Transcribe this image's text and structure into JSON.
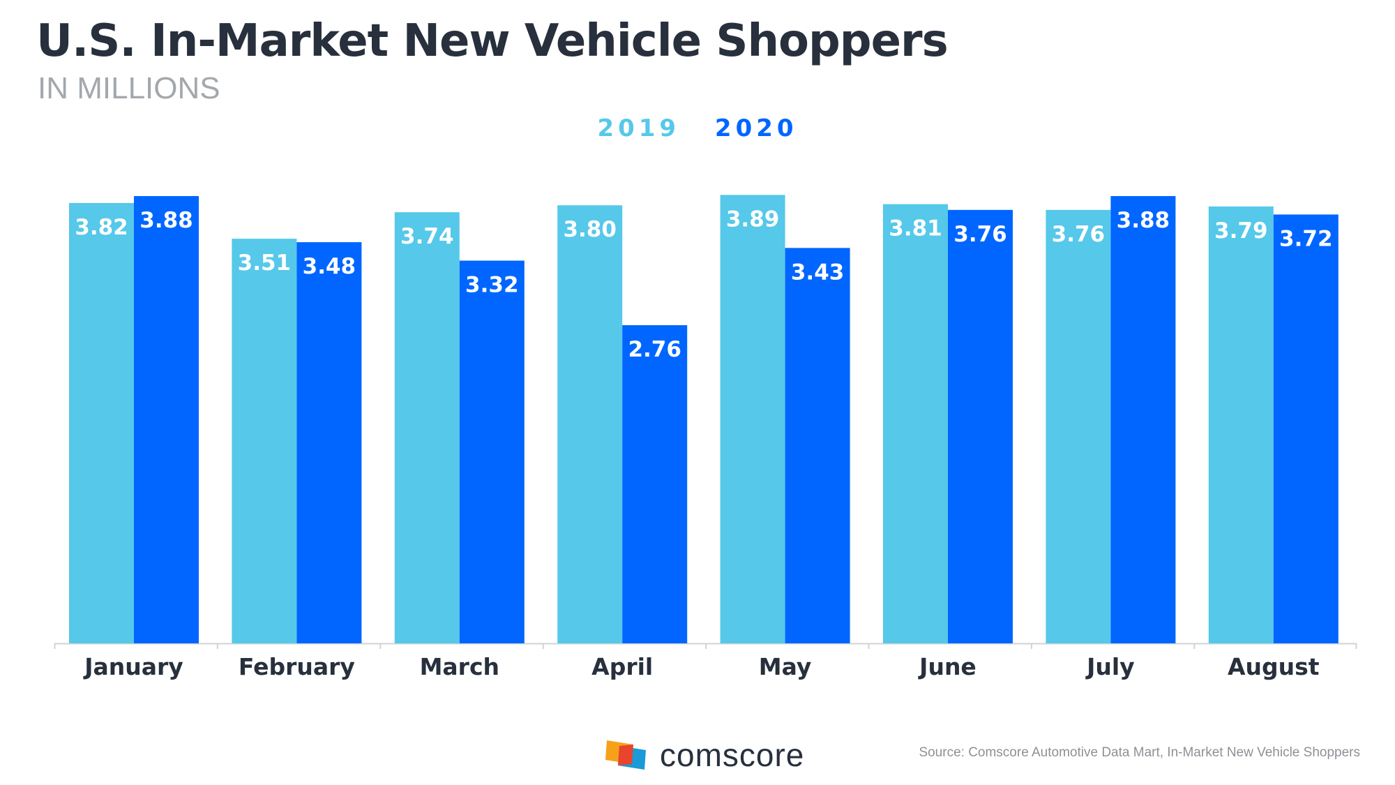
{
  "header": {
    "title": "U.S. In-Market New Vehicle Shoppers",
    "subtitle": "IN MILLIONS"
  },
  "legend": {
    "series_2019": "2019",
    "series_2020": "2020"
  },
  "colors": {
    "series_2019": "#56c8e9",
    "series_2020": "#0066ff",
    "axis": "#cfd3d6",
    "label_text": "#ffffff",
    "category_text": "#27303c"
  },
  "chart_data": {
    "type": "bar",
    "title": "U.S. In-Market New Vehicle Shoppers",
    "subtitle": "IN MILLIONS",
    "xlabel": "",
    "ylabel": "",
    "ylim": [
      0,
      4
    ],
    "grid": false,
    "legend_position": "top-center",
    "categories": [
      "January",
      "February",
      "March",
      "April",
      "May",
      "June",
      "July",
      "August"
    ],
    "series": [
      {
        "name": "2019",
        "values": [
          3.82,
          3.51,
          3.74,
          3.8,
          3.89,
          3.81,
          3.76,
          3.79
        ]
      },
      {
        "name": "2020",
        "values": [
          3.88,
          3.48,
          3.32,
          2.76,
          3.43,
          3.76,
          3.88,
          3.72
        ]
      }
    ]
  },
  "footer": {
    "logo_text": "comscore",
    "source": "Source: Comscore Automotive Data Mart, In-Market New Vehicle Shoppers"
  }
}
